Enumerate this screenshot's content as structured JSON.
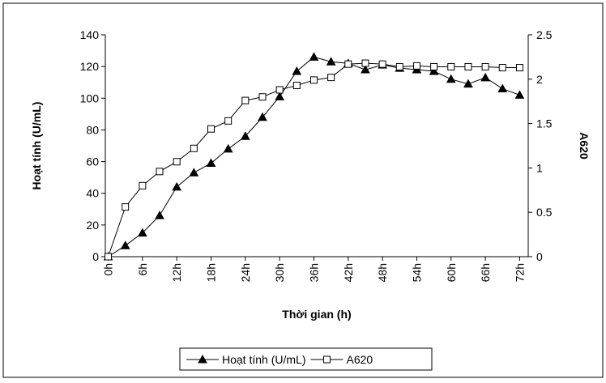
{
  "chart_data": {
    "type": "line",
    "x_label": "Thời gian (h)",
    "y_label": "Hoạt tính (U/mL)",
    "y2_label": "A620",
    "x": [
      0,
      3,
      6,
      9,
      12,
      15,
      18,
      21,
      24,
      27,
      30,
      33,
      36,
      39,
      42,
      45,
      48,
      51,
      54,
      57,
      60,
      63,
      66,
      69,
      72
    ],
    "xlim": [
      -0.5,
      73.5
    ],
    "xticks": [
      {
        "value": 0,
        "label": "0h"
      },
      {
        "value": 6,
        "label": "6h"
      },
      {
        "value": 12,
        "label": "12h"
      },
      {
        "value": 18,
        "label": "18h"
      },
      {
        "value": 24,
        "label": "24h"
      },
      {
        "value": 30,
        "label": "30h"
      },
      {
        "value": 36,
        "label": "36h"
      },
      {
        "value": 42,
        "label": "42h"
      },
      {
        "value": 48,
        "label": "48h"
      },
      {
        "value": 54,
        "label": "54h"
      },
      {
        "value": 60,
        "label": "60h"
      },
      {
        "value": 66,
        "label": "66h"
      },
      {
        "value": 72,
        "label": "72h"
      }
    ],
    "ylim": [
      0,
      140
    ],
    "yticks": [
      0,
      20,
      40,
      60,
      80,
      100,
      120,
      140
    ],
    "y2lim": [
      0,
      2.5
    ],
    "y2ticks": [
      0,
      0.5,
      1,
      1.5,
      2,
      2.5
    ],
    "series": [
      {
        "name": "Hoạt tính (U/mL)",
        "color": "#000000",
        "marker": "triangle",
        "values": [
          0,
          7,
          15,
          26,
          44,
          53,
          59,
          68,
          76,
          88,
          101,
          117,
          126,
          123,
          122,
          118,
          121,
          119,
          118,
          117,
          112,
          109,
          113,
          106,
          102
        ]
      },
      {
        "name": "A620",
        "color": "#000000",
        "marker": "square",
        "axis": "y2",
        "values": [
          0,
          0.56,
          0.8,
          0.96,
          1.07,
          1.22,
          1.44,
          1.53,
          1.76,
          1.8,
          1.88,
          1.93,
          1.99,
          2.02,
          2.17,
          2.18,
          2.17,
          2.14,
          2.15,
          2.14,
          2.14,
          2.14,
          2.14,
          2.13,
          2.13
        ]
      }
    ]
  }
}
